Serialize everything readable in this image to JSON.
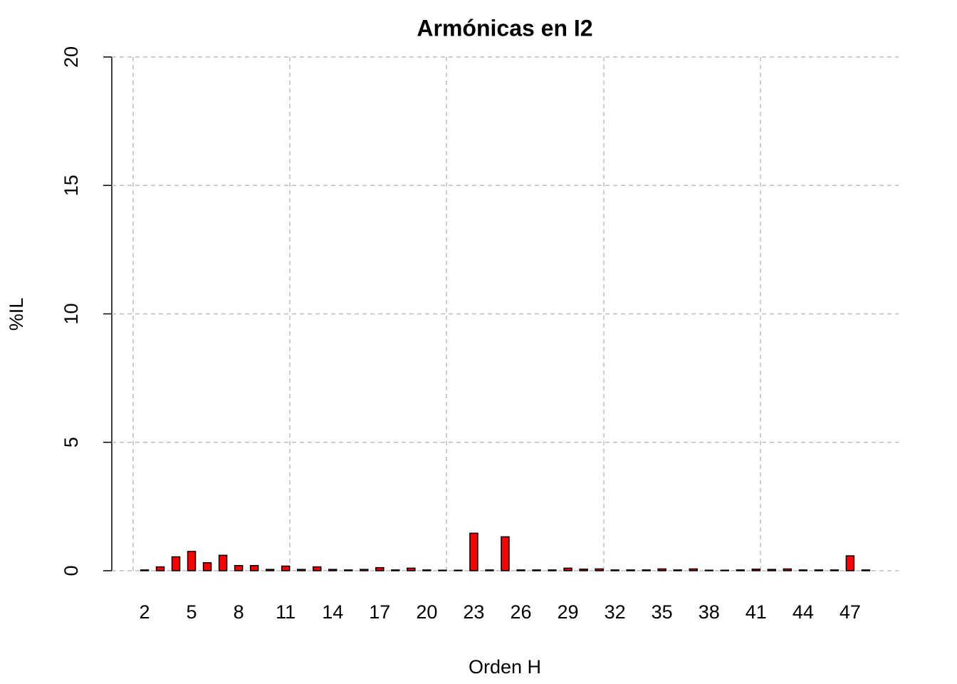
{
  "chart_data": {
    "type": "bar",
    "title": "Armónicas en I2",
    "x_label": "Orden H",
    "y_label": "%IL",
    "categories": [
      2,
      null,
      null,
      5,
      null,
      null,
      8,
      null,
      null,
      11,
      null,
      null,
      14,
      null,
      null,
      17,
      null,
      null,
      20,
      null,
      null,
      23,
      null,
      null,
      26,
      null,
      null,
      29,
      null,
      null,
      32,
      null,
      null,
      35,
      null,
      null,
      38,
      null,
      null,
      41,
      null,
      null,
      44,
      null,
      null,
      47,
      null
    ],
    "values": [
      0.03,
      0.15,
      0.54,
      0.75,
      0.31,
      0.6,
      0.2,
      0.2,
      0.05,
      0.18,
      0.05,
      0.15,
      0.05,
      0.03,
      0.05,
      0.12,
      0.03,
      0.1,
      0.03,
      0.02,
      0.02,
      1.46,
      0.03,
      1.32,
      0.03,
      0.03,
      0.03,
      0.1,
      0.06,
      0.07,
      0.03,
      0.03,
      0.03,
      0.07,
      0.03,
      0.07,
      0.02,
      0.02,
      0.03,
      0.06,
      0.05,
      0.07,
      0.03,
      0.03,
      0.03,
      0.58,
      0.03
    ],
    "color": "#ff0000",
    "ylim": [
      0,
      20
    ],
    "yticks": [
      0,
      5,
      10,
      15,
      20
    ],
    "grid": true
  }
}
